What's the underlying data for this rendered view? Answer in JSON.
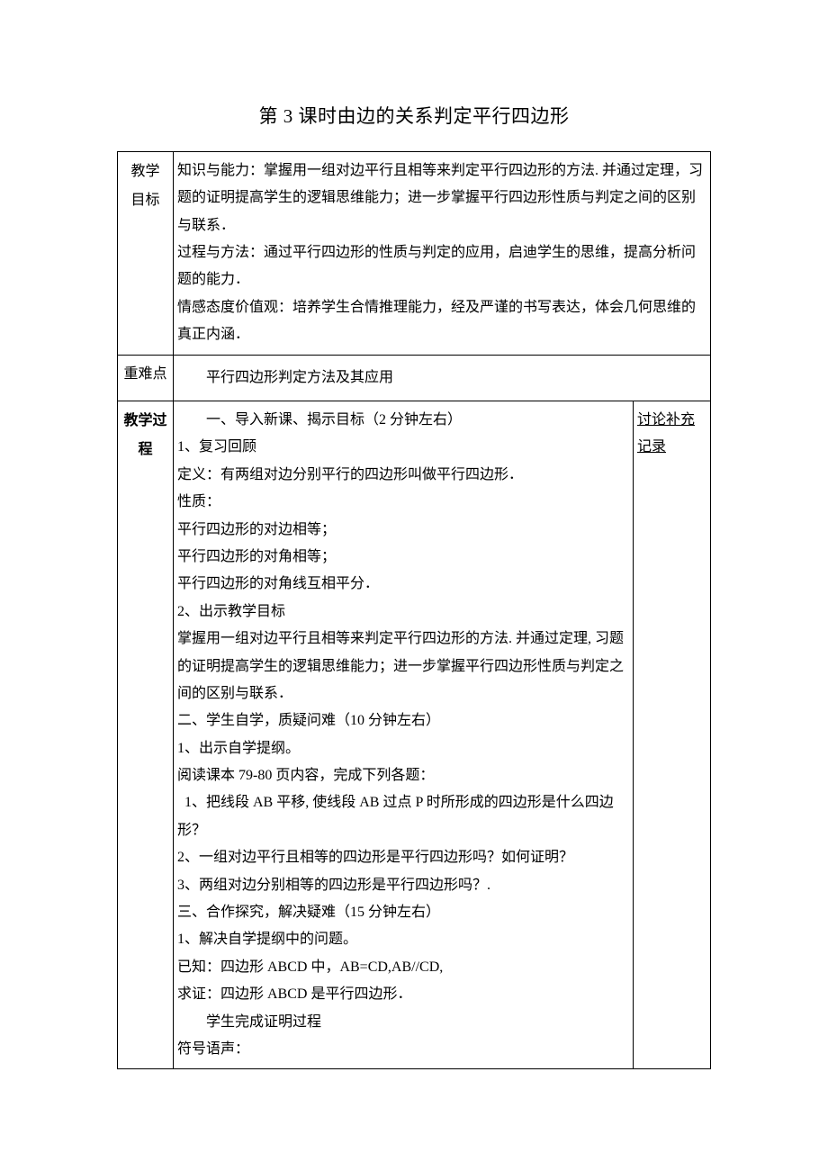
{
  "title": "第 3 课时由边的关系判定平行四边形",
  "rows": {
    "goals": {
      "label_line1": "教学",
      "label_line2": "目标",
      "text": "知识与能力：掌握用一组对边平行且相等来判定平行四边形的方法. 并通过定理，习题的证明提高学生的逻辑思维能力；进一步掌握平行四边形性质与判定之间的区别与联系．\n过程与方法：通过平行四边形的性质与判定的应用，启迪学生的思维，提高分析问题的能力．\n情感态度价值观：培养学生合情推理能力，经及严谨的书写表达，体会几何思维的真正内涵．"
    },
    "keys": {
      "label": "重难点",
      "text": "平行四边形判定方法及其应用"
    },
    "process": {
      "label_line1": "教学过",
      "label_line2": "程",
      "notes_line1": "讨论补充",
      "notes_line2": "记录",
      "lines": [
        {
          "t": "一、导入新课、揭示目标（2 分钟左右）",
          "indent": true
        },
        {
          "t": "1、复习回顾"
        },
        {
          "t": "定义：有两组对边分别平行的四边形叫做平行四边形．"
        },
        {
          "t": "性质："
        },
        {
          "t": "平行四边形的对边相等；"
        },
        {
          "t": "平行四边形的对角相等；"
        },
        {
          "t": "平行四边形的对角线互相平分．"
        },
        {
          "t": "2、出示教学目标"
        },
        {
          "t": "掌握用一组对边平行且相等来判定平行四边形的方法. 并通过定理, 习题的证明提高学生的逻辑思维能力；进一步掌握平行四边形性质与判定之间的区别与联系．"
        },
        {
          "t": "二、学生自学，质疑问难（10 分钟左右）"
        },
        {
          "t": "1、出示自学提纲。"
        },
        {
          "t": "阅读课本 79-80 页内容，完成下列各题："
        },
        {
          "t": "  1、把线段 AB 平移, 使线段 AB 过点 P 时所形成的四边形是什么四边形？"
        },
        {
          "t": "2、一组对边平行且相等的四边形是平行四边形吗？如何证明？"
        },
        {
          "t": "3、两组对边分别相等的四边形是平行四边形吗？."
        },
        {
          "t": "三、合作探究，解决疑难（15 分钟左右）"
        },
        {
          "t": "1、解决自学提纲中的问题。"
        },
        {
          "t": "已知：四边形 ABCD 中，AB=CD,AB//CD,"
        },
        {
          "t": "求证：四边形 ABCD 是平行四边形．"
        },
        {
          "t": "学生完成证明过程",
          "indent": true
        },
        {
          "t": "符号语声："
        }
      ]
    }
  }
}
